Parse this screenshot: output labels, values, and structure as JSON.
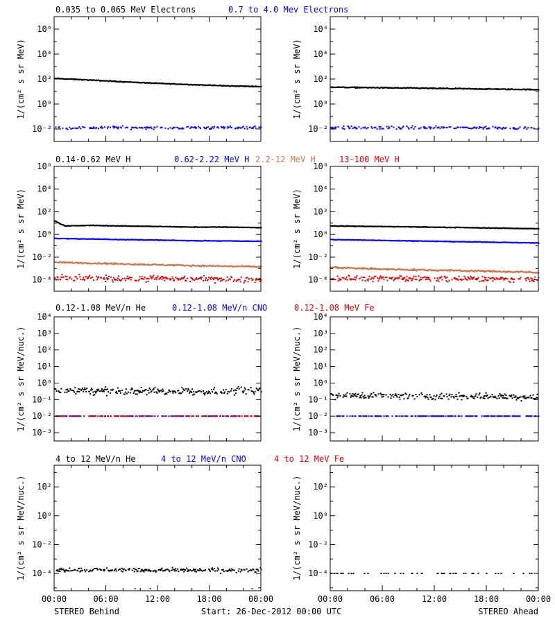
{
  "colors": {
    "black": "#000000",
    "blue": "#0000ff",
    "tan": "#c87850",
    "red": "#dd0000"
  },
  "footer": {
    "left": "STEREO Behind",
    "center": "Start: 26-Dec-2012 00:00 UTC",
    "right": "STEREO Ahead"
  },
  "rows": [
    {
      "legend": [
        {
          "text": "0.035 to 0.065 MeV Electrons",
          "color": "black"
        },
        {
          "text": "0.7 to 4.0 Mev Electrons",
          "color": "blue"
        }
      ],
      "ylabel": "1/(cm² s sr MeV)"
    },
    {
      "legend": [
        {
          "text": "0.14-0.62 MeV H",
          "color": "black"
        },
        {
          "text": "0.62-2.22 MeV H",
          "color": "blue"
        },
        {
          "text": "2.2-12 MeV H",
          "color": "tan"
        },
        {
          "text": "13-100 MeV H",
          "color": "red"
        }
      ],
      "ylabel": "1/(cm² s sr MeV)"
    },
    {
      "legend": [
        {
          "text": "0.12-1.08 MeV/n He",
          "color": "black"
        },
        {
          "text": "0.12-1.08 MeV/n CNO",
          "color": "blue"
        },
        {
          "text": "0.12-1.08 MeV Fe",
          "color": "red"
        }
      ],
      "ylabel": "1/(cm² s sr MeV/nuc.)"
    },
    {
      "legend": [
        {
          "text": "4 to 12 MeV/n He",
          "color": "black"
        },
        {
          "text": "4 to 12 MeV/n CNO",
          "color": "blue"
        },
        {
          "text": "4 to 12 MeV Fe",
          "color": "red"
        }
      ],
      "ylabel": "1/(cm² s sr MeV/nuc.)"
    }
  ],
  "chart_data": [
    {
      "type": "scatter",
      "panel": "row1-behind",
      "ylabel": "1/(cm² s sr MeV)",
      "yscale": "log",
      "ylim_log10": [
        -3,
        7
      ],
      "y_tick_exponents": [
        -2,
        0,
        2,
        4,
        6
      ],
      "x_range_hours": [
        0,
        24
      ],
      "x_ticks": [
        "00:00",
        "06:00",
        "12:00",
        "18:00",
        "00:00"
      ],
      "series": [
        {
          "name": "0.035 to 0.065 MeV Electrons",
          "color": "black",
          "x_hours": [
            0,
            4,
            8,
            12,
            16,
            20,
            24
          ],
          "log10_y": [
            2.05,
            1.92,
            1.78,
            1.65,
            1.55,
            1.45,
            1.4
          ],
          "scatter": 0.05,
          "density": 1
        },
        {
          "name": "0.7 to 4.0 Mev Electrons",
          "color": "blue",
          "x_hours": [
            0,
            24
          ],
          "log10_y": [
            -1.9,
            -1.9
          ],
          "scatter": 0.18,
          "density": 0.55
        }
      ]
    },
    {
      "type": "scatter",
      "panel": "row1-ahead",
      "ylabel": "1/(cm² s sr MeV)",
      "yscale": "log",
      "ylim_log10": [
        -3,
        7
      ],
      "y_tick_exponents": [
        -2,
        0,
        2,
        4,
        6
      ],
      "x_range_hours": [
        0,
        24
      ],
      "x_ticks": [
        "00:00",
        "06:00",
        "12:00",
        "18:00",
        "00:00"
      ],
      "series": [
        {
          "name": "0.035 to 0.065 MeV Electrons",
          "color": "black",
          "x_hours": [
            0,
            6,
            12,
            18,
            24
          ],
          "log10_y": [
            1.35,
            1.3,
            1.25,
            1.2,
            1.15
          ],
          "scatter": 0.06,
          "density": 1
        },
        {
          "name": "0.7 to 4.0 Mev Electrons",
          "color": "blue",
          "x_hours": [
            0,
            24
          ],
          "log10_y": [
            -1.9,
            -1.9
          ],
          "scatter": 0.18,
          "density": 0.55
        }
      ]
    },
    {
      "type": "scatter",
      "panel": "row2-behind",
      "ylabel": "1/(cm² s sr MeV)",
      "yscale": "log",
      "ylim_log10": [
        -5,
        6
      ],
      "y_tick_exponents": [
        -4,
        -2,
        0,
        2,
        4,
        6
      ],
      "x_range_hours": [
        0,
        24
      ],
      "x_ticks": [
        "00:00",
        "06:00",
        "12:00",
        "18:00",
        "00:00"
      ],
      "series": [
        {
          "name": "0.14-0.62 MeV H",
          "color": "black",
          "x_hours": [
            0,
            0.6,
            1.2,
            4,
            8,
            12,
            16,
            20,
            24
          ],
          "log10_y": [
            1.2,
            0.95,
            0.75,
            0.8,
            0.75,
            0.7,
            0.65,
            0.65,
            0.6
          ],
          "scatter": 0.04,
          "density": 1
        },
        {
          "name": "0.62-2.22 MeV H",
          "color": "blue",
          "x_hours": [
            0,
            8,
            16,
            24
          ],
          "log10_y": [
            -0.35,
            -0.45,
            -0.55,
            -0.6
          ],
          "scatter": 0.04,
          "density": 1
        },
        {
          "name": "2.2-12 MeV H",
          "color": "tan",
          "x_hours": [
            0,
            8,
            16,
            24
          ],
          "log10_y": [
            -2.45,
            -2.6,
            -2.75,
            -2.85
          ],
          "scatter": 0.1,
          "density": 1
        },
        {
          "name": "13-100 MeV H",
          "color": "red",
          "x_hours": [
            0,
            24
          ],
          "log10_y": [
            -3.85,
            -3.95
          ],
          "scatter": 0.38,
          "density": 0.75
        }
      ]
    },
    {
      "type": "scatter",
      "panel": "row2-ahead",
      "ylabel": "1/(cm² s sr MeV)",
      "yscale": "log",
      "ylim_log10": [
        -5,
        6
      ],
      "y_tick_exponents": [
        -4,
        -2,
        0,
        2,
        4,
        6
      ],
      "x_range_hours": [
        0,
        24
      ],
      "x_ticks": [
        "00:00",
        "06:00",
        "12:00",
        "18:00",
        "00:00"
      ],
      "series": [
        {
          "name": "0.14-0.62 MeV H",
          "color": "black",
          "x_hours": [
            0,
            8,
            16,
            24
          ],
          "log10_y": [
            0.75,
            0.68,
            0.6,
            0.5
          ],
          "scatter": 0.04,
          "density": 1
        },
        {
          "name": "0.62-2.22 MeV H",
          "color": "blue",
          "x_hours": [
            0,
            8,
            16,
            24
          ],
          "log10_y": [
            -0.45,
            -0.55,
            -0.65,
            -0.75
          ],
          "scatter": 0.04,
          "density": 1
        },
        {
          "name": "2.2-12 MeV H",
          "color": "tan",
          "x_hours": [
            0,
            8,
            16,
            24
          ],
          "log10_y": [
            -2.9,
            -3.1,
            -3.2,
            -3.35
          ],
          "scatter": 0.12,
          "density": 1
        },
        {
          "name": "13-100 MeV H",
          "color": "red",
          "x_hours": [
            0,
            24
          ],
          "log10_y": [
            -3.85,
            -3.95
          ],
          "scatter": 0.35,
          "density": 0.75
        }
      ]
    },
    {
      "type": "scatter",
      "panel": "row3-behind",
      "ylabel": "1/(cm² s sr MeV/nuc.)",
      "yscale": "log",
      "ylim_log10": [
        -3.5,
        4
      ],
      "y_tick_exponents": [
        -3,
        -2,
        -1,
        0,
        1,
        2,
        3,
        4
      ],
      "x_range_hours": [
        0,
        24
      ],
      "x_ticks": [
        "00:00",
        "06:00",
        "12:00",
        "18:00",
        "00:00"
      ],
      "series": [
        {
          "name": "0.12-1.08 MeV/n He",
          "color": "black",
          "x_hours": [
            0,
            12,
            24
          ],
          "log10_y": [
            -0.45,
            -0.5,
            -0.5
          ],
          "scatter": 0.32,
          "density": 0.8
        },
        {
          "name": "0.12-1.08 MeV/n CNO",
          "color": "blue",
          "x_hours": [
            0,
            24
          ],
          "log10_y": [
            -2,
            -2
          ],
          "scatter": 0,
          "density": 0.3
        },
        {
          "name": "0.12-1.08 MeV Fe",
          "color": "red",
          "x_hours": [
            0,
            24
          ],
          "log10_y": [
            -2,
            -2
          ],
          "scatter": 0,
          "density": 0.3
        }
      ]
    },
    {
      "type": "scatter",
      "panel": "row3-ahead",
      "ylabel": "1/(cm² s sr MeV/nuc.)",
      "yscale": "log",
      "ylim_log10": [
        -3.5,
        4
      ],
      "y_tick_exponents": [
        -3,
        -2,
        -1,
        0,
        1,
        2,
        3,
        4
      ],
      "x_range_hours": [
        0,
        24
      ],
      "x_ticks": [
        "00:00",
        "06:00",
        "12:00",
        "18:00",
        "00:00"
      ],
      "series": [
        {
          "name": "0.12-1.08 MeV/n He",
          "color": "black",
          "x_hours": [
            0,
            12,
            24
          ],
          "log10_y": [
            -0.75,
            -0.8,
            -0.85
          ],
          "scatter": 0.3,
          "density": 0.7
        },
        {
          "name": "0.12-1.08 MeV/n CNO",
          "color": "blue",
          "x_hours": [
            0,
            24
          ],
          "log10_y": [
            -2,
            -2
          ],
          "scatter": 0,
          "density": 0.45
        },
        {
          "name": "0.12-1.08 MeV Fe",
          "color": "red",
          "x_hours": [
            0,
            24
          ],
          "log10_y": [
            -2,
            -2
          ],
          "scatter": 0,
          "density": 0
        }
      ]
    },
    {
      "type": "scatter",
      "panel": "row4-behind",
      "ylabel": "1/(cm² s sr MeV/nuc.)",
      "yscale": "log",
      "ylim_log10": [
        -5.2,
        3.5
      ],
      "y_tick_exponents": [
        -4,
        -2,
        0,
        2
      ],
      "x_range_hours": [
        0,
        24
      ],
      "x_ticks": [
        "00:00",
        "06:00",
        "12:00",
        "18:00",
        "00:00"
      ],
      "series": [
        {
          "name": "4 to 12 MeV/n He",
          "color": "black",
          "x_hours": [
            0,
            24
          ],
          "log10_y": [
            -3.75,
            -3.8
          ],
          "scatter": 0.22,
          "density": 0.7
        },
        {
          "name": "4 to 12 MeV/n CNO",
          "color": "blue",
          "x_hours": [
            0,
            24
          ],
          "log10_y": [
            -5.05,
            -5.05
          ],
          "scatter": 0,
          "density": 0
        },
        {
          "name": "4 to 12 MeV Fe",
          "color": "red",
          "x_hours": [
            0,
            24
          ],
          "log10_y": [
            -5.05,
            -5.05
          ],
          "scatter": 0,
          "density": 0.02
        }
      ]
    },
    {
      "type": "scatter",
      "panel": "row4-ahead",
      "ylabel": "1/(cm² s sr MeV/nuc.)",
      "yscale": "log",
      "ylim_log10": [
        -5.2,
        3.5
      ],
      "y_tick_exponents": [
        -4,
        -2,
        0,
        2
      ],
      "x_range_hours": [
        0,
        24
      ],
      "x_ticks": [
        "00:00",
        "06:00",
        "12:00",
        "18:00",
        "00:00"
      ],
      "series": [
        {
          "name": "4 to 12 MeV/n He",
          "color": "black",
          "x_hours": [
            0,
            24
          ],
          "log10_y": [
            -4,
            -4
          ],
          "scatter": 0,
          "density": 0.15
        },
        {
          "name": "4 to 12 MeV/n CNO",
          "color": "blue",
          "x_hours": [
            0,
            24
          ],
          "log10_y": [
            -5.05,
            -5.05
          ],
          "scatter": 0,
          "density": 0
        },
        {
          "name": "4 to 12 MeV Fe",
          "color": "red",
          "x_hours": [
            0,
            24
          ],
          "log10_y": [
            -5.05,
            -5.05
          ],
          "scatter": 0,
          "density": 0
        }
      ]
    }
  ]
}
